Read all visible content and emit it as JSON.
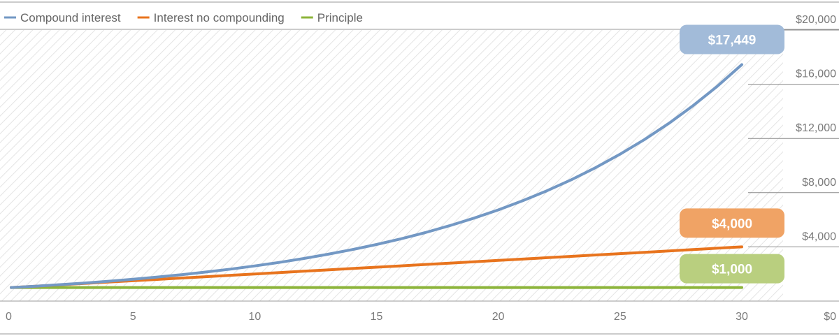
{
  "chart_data": {
    "type": "line",
    "title": "",
    "xlabel": "",
    "ylabel": "",
    "x": [
      0,
      1,
      2,
      3,
      4,
      5,
      6,
      7,
      8,
      9,
      10,
      11,
      12,
      13,
      14,
      15,
      16,
      17,
      18,
      19,
      20,
      21,
      22,
      23,
      24,
      25,
      26,
      27,
      28,
      29,
      30
    ],
    "x_ticks": [
      "0",
      "5",
      "10",
      "15",
      "20",
      "25",
      "30"
    ],
    "x_tick_values": [
      0,
      5,
      10,
      15,
      20,
      25,
      30
    ],
    "y_ticks": [
      "$0",
      "$4,000",
      "$8,000",
      "$12,000",
      "$16,000",
      "$20,000"
    ],
    "y_tick_values": [
      0,
      4000,
      8000,
      12000,
      16000,
      20000
    ],
    "xlim": [
      0,
      30
    ],
    "ylim": [
      0,
      20000
    ],
    "grid": true,
    "legend_position": "top-left",
    "series": [
      {
        "name": "Compound interest",
        "color": "#7398c4",
        "values": [
          1000,
          1100,
          1210,
          1331,
          1464,
          1611,
          1772,
          1949,
          2144,
          2358,
          2594,
          2853,
          3138,
          3452,
          3797,
          4177,
          4595,
          5054,
          5560,
          6116,
          6727,
          7400,
          8140,
          8954,
          9850,
          10835,
          11918,
          13110,
          14421,
          15863,
          17449
        ]
      },
      {
        "name": "Interest no compounding",
        "color": "#e8741e",
        "values": [
          1000,
          1100,
          1200,
          1300,
          1400,
          1500,
          1600,
          1700,
          1800,
          1900,
          2000,
          2100,
          2200,
          2300,
          2400,
          2500,
          2600,
          2700,
          2800,
          2900,
          3000,
          3100,
          3200,
          3300,
          3400,
          3500,
          3600,
          3700,
          3800,
          3900,
          4000
        ]
      },
      {
        "name": "Principle",
        "color": "#8cb43a",
        "values": [
          1000,
          1000,
          1000,
          1000,
          1000,
          1000,
          1000,
          1000,
          1000,
          1000,
          1000,
          1000,
          1000,
          1000,
          1000,
          1000,
          1000,
          1000,
          1000,
          1000,
          1000,
          1000,
          1000,
          1000,
          1000,
          1000,
          1000,
          1000,
          1000,
          1000,
          1000
        ]
      }
    ],
    "callouts": [
      {
        "label": "$17,449",
        "value": 17449,
        "color": "#a2bbd9"
      },
      {
        "label": "$4,000",
        "value": 4000,
        "color": "#f0a365"
      },
      {
        "label": "$1,000",
        "value": 1000,
        "color": "#b9cf7f"
      }
    ]
  }
}
